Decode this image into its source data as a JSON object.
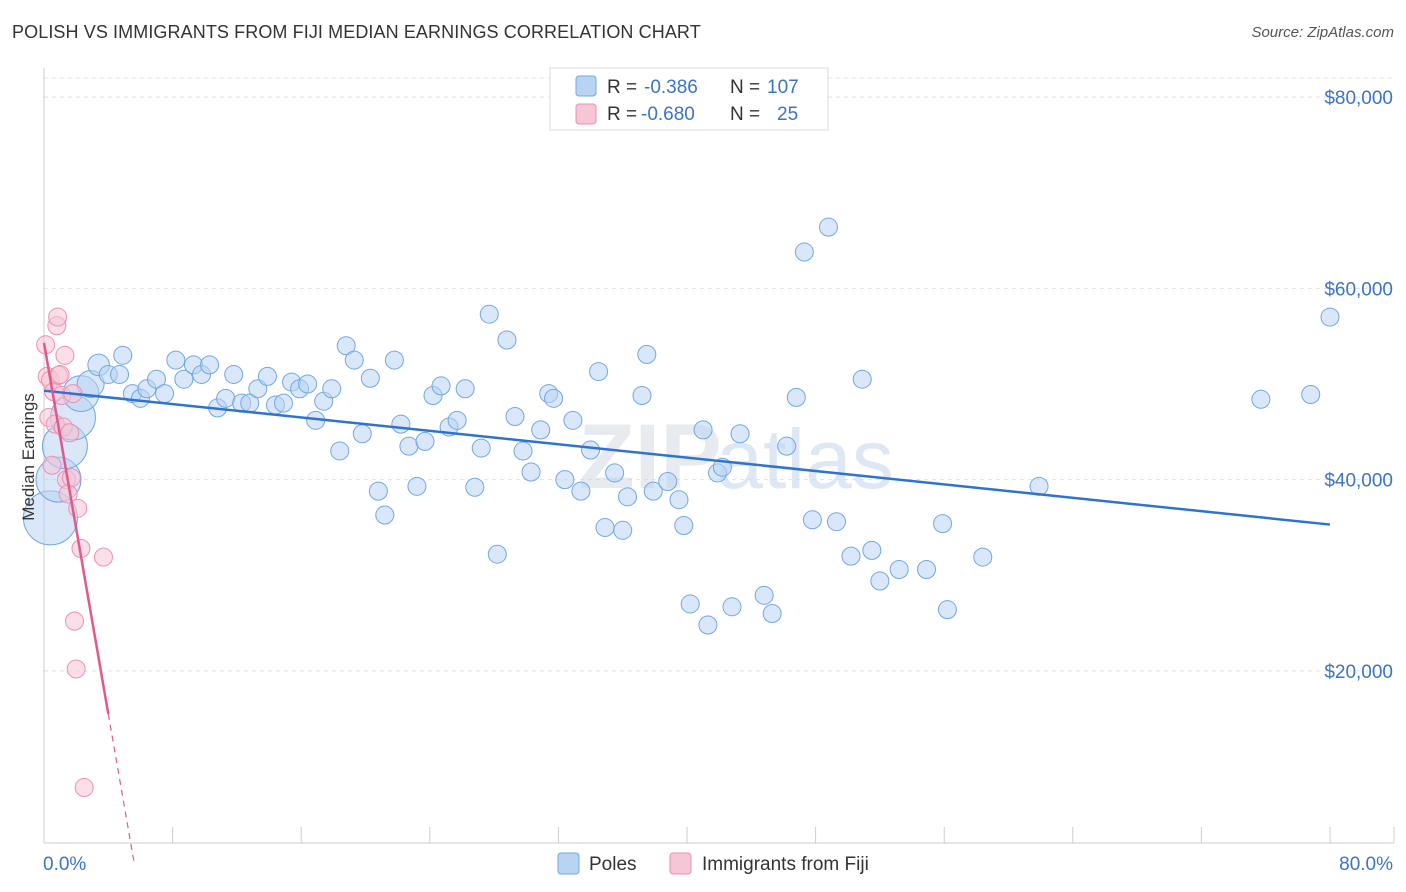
{
  "title": "POLISH VS IMMIGRANTS FROM FIJI MEDIAN EARNINGS CORRELATION CHART",
  "source": "Source: ZipAtlas.com",
  "watermark": "ZIPatlas",
  "colors": {
    "blue": "#6fa8e8",
    "blue_fill": "#b9d3f3",
    "blue_line": "#2e73d2",
    "pink": "#ef8fb0",
    "pink_fill": "#f6c5d6",
    "pink_line": "#e3588b",
    "value_text": "#3a74c8",
    "grid": "#dde3ea"
  },
  "legend_top": {
    "rows": [
      {
        "r_label": "R =",
        "r_value": "-0.386",
        "n_label": "N =",
        "n_value": "107",
        "series": "Poles"
      },
      {
        "r_label": "R =",
        "r_value": "-0.680",
        "n_label": "N =",
        "n_value": "25",
        "series": "Immigrants from Fiji"
      }
    ]
  },
  "chart_data": {
    "type": "scatter",
    "title": "POLISH VS IMMIGRANTS FROM FIJI MEDIAN EARNINGS CORRELATION CHART",
    "xlabel": "",
    "ylabel": "Median Earnings",
    "xlim": [
      0,
      80
    ],
    "ylim": [
      2000,
      82000
    ],
    "x_tick_labels": [
      "0.0%",
      "80.0%"
    ],
    "y_ticks": [
      20000,
      40000,
      60000,
      80000
    ],
    "y_tick_labels": [
      "$20,000",
      "$40,000",
      "$60,000",
      "$80,000"
    ],
    "grid": true,
    "legend_position": "bottom-center",
    "series": [
      {
        "name": "Poles",
        "color": "#6fa8e8",
        "points": [
          [
            0.4,
            36000,
            3
          ],
          [
            0.9,
            40000,
            2.5
          ],
          [
            1.3,
            43500,
            2.5
          ],
          [
            1.8,
            46500,
            2.5
          ],
          [
            2.3,
            49000,
            2
          ],
          [
            2.9,
            50000,
            1.5
          ],
          [
            3.4,
            52000,
            1.2
          ],
          [
            4.0,
            51000,
            1
          ],
          [
            4.7,
            51000,
            1
          ],
          [
            4.9,
            53000,
            1
          ],
          [
            5.5,
            49000,
            1
          ],
          [
            6.0,
            48500,
            1
          ],
          [
            6.4,
            49500,
            1
          ],
          [
            7.0,
            50500,
            1
          ],
          [
            7.5,
            49000,
            1
          ],
          [
            8.2,
            52500,
            1
          ],
          [
            8.7,
            50500,
            1
          ],
          [
            9.3,
            52000,
            1
          ],
          [
            9.8,
            51000,
            1
          ],
          [
            10.3,
            52000,
            1
          ],
          [
            10.8,
            47500,
            1
          ],
          [
            11.3,
            48500,
            1
          ],
          [
            11.8,
            51000,
            1
          ],
          [
            12.3,
            48000,
            1
          ],
          [
            12.8,
            48000,
            1
          ],
          [
            13.3,
            49500,
            1
          ],
          [
            13.9,
            50800,
            1
          ],
          [
            14.4,
            47800,
            1
          ],
          [
            14.9,
            48000,
            1
          ],
          [
            15.4,
            50200,
            1
          ],
          [
            15.9,
            49500,
            1
          ],
          [
            16.4,
            50000,
            1
          ],
          [
            16.9,
            46200,
            1
          ],
          [
            17.4,
            48200,
            1
          ],
          [
            17.9,
            49500,
            1
          ],
          [
            18.4,
            43000,
            1
          ],
          [
            18.8,
            54000,
            1
          ],
          [
            19.3,
            52500,
            1
          ],
          [
            19.8,
            44800,
            1
          ],
          [
            20.3,
            50600,
            1
          ],
          [
            20.8,
            38800,
            1
          ],
          [
            21.2,
            36300,
            1
          ],
          [
            21.8,
            52500,
            1
          ],
          [
            22.2,
            45800,
            1
          ],
          [
            22.7,
            43500,
            1
          ],
          [
            23.2,
            39300,
            1
          ],
          [
            23.7,
            44000,
            1
          ],
          [
            24.2,
            48800,
            1
          ],
          [
            24.7,
            49800,
            1
          ],
          [
            25.2,
            45500,
            1
          ],
          [
            25.7,
            46200,
            1
          ],
          [
            26.2,
            49500,
            1
          ],
          [
            26.8,
            39200,
            1
          ],
          [
            27.2,
            43300,
            1
          ],
          [
            27.7,
            57300,
            1
          ],
          [
            28.2,
            32200,
            1
          ],
          [
            28.8,
            54600,
            1
          ],
          [
            29.3,
            46600,
            1
          ],
          [
            29.8,
            43000,
            1
          ],
          [
            30.3,
            40800,
            1
          ],
          [
            30.9,
            45200,
            1
          ],
          [
            31.4,
            49000,
            1
          ],
          [
            31.7,
            48500,
            1
          ],
          [
            32.4,
            40000,
            1
          ],
          [
            32.9,
            46200,
            1
          ],
          [
            33.4,
            38800,
            1
          ],
          [
            34.0,
            43100,
            1
          ],
          [
            34.5,
            51300,
            1
          ],
          [
            34.9,
            35000,
            1
          ],
          [
            35.5,
            40700,
            1
          ],
          [
            36.0,
            34700,
            1
          ],
          [
            36.3,
            38200,
            1
          ],
          [
            37.2,
            48800,
            1
          ],
          [
            37.5,
            53100,
            1
          ],
          [
            37.9,
            38800,
            1
          ],
          [
            38.8,
            39800,
            1
          ],
          [
            39.5,
            37900,
            1
          ],
          [
            39.8,
            35200,
            1
          ],
          [
            40.2,
            27000,
            1
          ],
          [
            41.0,
            45200,
            1
          ],
          [
            41.3,
            24800,
            1
          ],
          [
            41.9,
            40700,
            1
          ],
          [
            42.2,
            41300,
            1
          ],
          [
            42.8,
            26700,
            1
          ],
          [
            43.3,
            44800,
            1
          ],
          [
            44.8,
            27900,
            1
          ],
          [
            45.3,
            26000,
            1
          ],
          [
            46.2,
            43500,
            1
          ],
          [
            46.8,
            48600,
            1
          ],
          [
            47.3,
            63800,
            1
          ],
          [
            47.8,
            35800,
            1
          ],
          [
            48.8,
            66400,
            1
          ],
          [
            49.3,
            35600,
            1
          ],
          [
            50.2,
            32000,
            1
          ],
          [
            50.9,
            50500,
            1
          ],
          [
            51.5,
            32600,
            1
          ],
          [
            52.0,
            29400,
            1
          ],
          [
            53.2,
            30600,
            1
          ],
          [
            54.9,
            30600,
            1
          ],
          [
            55.9,
            35400,
            1
          ],
          [
            56.2,
            26400,
            1
          ],
          [
            58.4,
            31900,
            1
          ],
          [
            61.9,
            39300,
            1
          ],
          [
            75.7,
            48400,
            1
          ],
          [
            78.8,
            48900,
            1
          ],
          [
            80.0,
            57000,
            1
          ]
        ]
      },
      {
        "name": "Immigrants from Fiji",
        "color": "#ef8fb0",
        "points": [
          [
            0.1,
            54100,
            1
          ],
          [
            0.2,
            50800,
            1
          ],
          [
            0.3,
            46500,
            1
          ],
          [
            0.4,
            50400,
            1
          ],
          [
            0.5,
            41500,
            1
          ],
          [
            0.6,
            49200,
            1
          ],
          [
            0.7,
            45800,
            1
          ],
          [
            0.8,
            56100,
            1
          ],
          [
            0.85,
            57000,
            1
          ],
          [
            0.9,
            50900,
            1
          ],
          [
            1.0,
            51000,
            1
          ],
          [
            1.1,
            48800,
            1
          ],
          [
            1.2,
            45500,
            1
          ],
          [
            1.3,
            53000,
            1
          ],
          [
            1.4,
            40000,
            1
          ],
          [
            1.5,
            38500,
            1
          ],
          [
            1.7,
            40200,
            1
          ],
          [
            1.8,
            49000,
            1
          ],
          [
            1.9,
            25200,
            1
          ],
          [
            2.0,
            20200,
            1
          ],
          [
            2.1,
            37000,
            1
          ],
          [
            2.3,
            32800,
            1
          ],
          [
            2.5,
            7800,
            1
          ],
          [
            3.7,
            31900,
            1
          ],
          [
            1.6,
            44900,
            1
          ]
        ]
      }
    ],
    "trendlines": [
      {
        "series": "Poles",
        "from": [
          0,
          49300
        ],
        "to": [
          80,
          35300
        ],
        "style": "solid"
      },
      {
        "series": "Immigrants from Fiji",
        "from": [
          0,
          54300
        ],
        "to": [
          4.0,
          15500
        ],
        "style": "solid"
      },
      {
        "series": "Immigrants from Fiji",
        "from": [
          4.0,
          15500
        ],
        "to": [
          5.6,
          0
        ],
        "style": "dashed"
      }
    ]
  }
}
